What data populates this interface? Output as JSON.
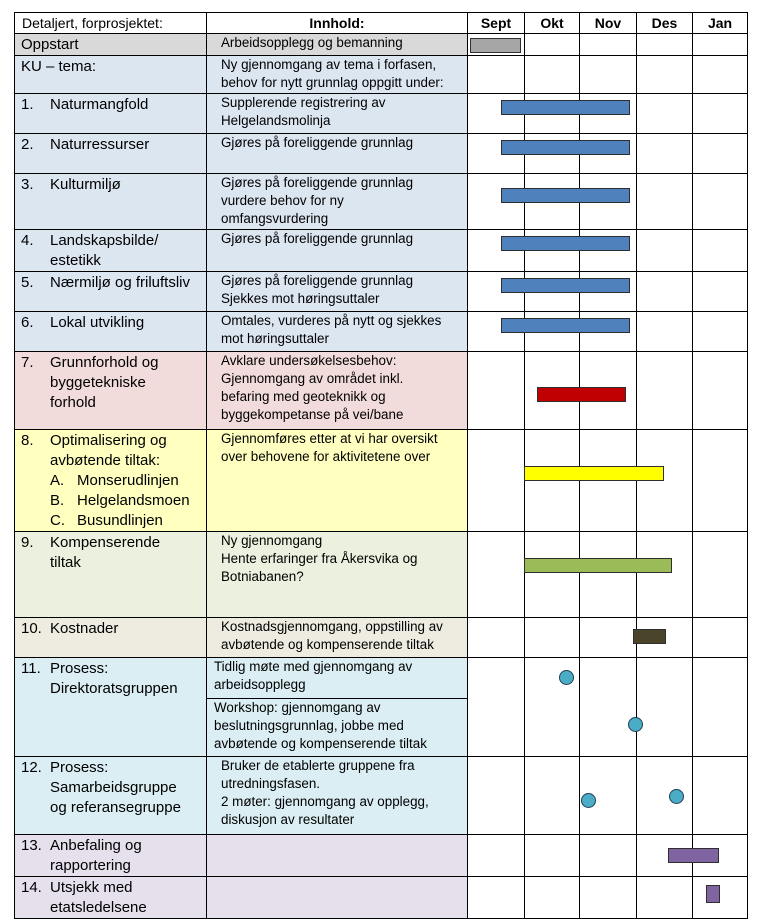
{
  "header": {
    "col1": "Detaljert, forprosjektet:",
    "col2": "Innhold:",
    "months": [
      "Sept",
      "Okt",
      "Nov",
      "Des",
      "Jan"
    ]
  },
  "colors": {
    "grey": "#d9d9d9",
    "blue": "#dce6f1",
    "red": "#f2dcdb",
    "yellow": "#ffffc0",
    "green": "#ebf1de",
    "tan": "#eeece1",
    "cyan": "#dbeef3",
    "lavender": "#e5e0ec",
    "bar_grey": "#a6a6a6",
    "bar_blue": "#4f81bd",
    "bar_red": "#c00000",
    "bar_yellow": "#ffff00",
    "bar_green": "#9bbb59",
    "bar_dark": "#4a452a",
    "bar_purple": "#8064a2",
    "milestone": "#4bacc6"
  },
  "rows": [
    {
      "num": "",
      "task": [
        "Oppstart"
      ],
      "subs": [],
      "content": [
        [
          "Arbeidsopplegg og bemanning"
        ]
      ],
      "bg": "#d9d9d9"
    },
    {
      "num": "",
      "task": [
        "KU – tema:"
      ],
      "subs": [],
      "content": [
        [
          "Ny gjennomgang av tema i forfasen,",
          "behov for nytt grunnlag oppgitt under:"
        ]
      ],
      "bg": "#dce6f1"
    },
    {
      "num": "1.",
      "task": [
        "Naturmangfold"
      ],
      "subs": [],
      "content": [
        [
          "Supplerende registrering av",
          "Helgelandsmolinja"
        ]
      ],
      "bg": "#dce6f1"
    },
    {
      "num": "2.",
      "task": [
        "Naturressurser"
      ],
      "subs": [],
      "content": [
        [
          "Gjøres på foreliggende grunnlag"
        ]
      ],
      "bg": "#dce6f1"
    },
    {
      "num": "3.",
      "task": [
        "Kulturmiljø"
      ],
      "subs": [],
      "content": [
        [
          "Gjøres på foreliggende grunnlag",
          "vurdere behov for ny",
          "omfangsvurdering"
        ]
      ],
      "bg": "#dce6f1"
    },
    {
      "num": "4.",
      "task": [
        "Landskapsbilde/",
        "estetikk"
      ],
      "subs": [],
      "content": [
        [
          "Gjøres på foreliggende grunnlag"
        ]
      ],
      "bg": "#dce6f1"
    },
    {
      "num": "5.",
      "task": [
        "Nærmiljø og friluftsliv"
      ],
      "subs": [],
      "content": [
        [
          "Gjøres på foreliggende grunnlag",
          "Sjekkes mot høringsuttaler"
        ]
      ],
      "bg": "#dce6f1"
    },
    {
      "num": "6.",
      "task": [
        "Lokal utvikling"
      ],
      "subs": [],
      "content": [
        [
          "Omtales, vurderes på nytt og sjekkes",
          "mot høringsuttaler"
        ]
      ],
      "bg": "#dce6f1"
    },
    {
      "num": "7.",
      "task": [
        "Grunnforhold og",
        "byggetekniske",
        "forhold"
      ],
      "subs": [],
      "content": [
        [
          "Avklare undersøkelsesbehov:",
          "Gjennomgang av området inkl.",
          "befaring med geoteknikk og",
          "byggekompetanse på vei/bane"
        ]
      ],
      "bg": "#f2dcdb"
    },
    {
      "num": "8.",
      "task": [
        "Optimalisering og",
        "avbøtende tiltak:"
      ],
      "subs": [
        [
          "A.",
          "Monserudlinjen"
        ],
        [
          "B.",
          "Helgelandsmoen"
        ],
        [
          "C.",
          "Busundlinjen"
        ]
      ],
      "content": [
        [
          "Gjennomføres etter at vi har oversikt",
          "over behovene for aktivitetene over"
        ]
      ],
      "bg": "#ffffc0"
    },
    {
      "num": "9.",
      "task": [
        "Kompenserende",
        "tiltak"
      ],
      "subs": [],
      "content": [
        [
          "Ny gjennomgang",
          "Hente erfaringer fra Åkersvika og",
          "Botniabanen?"
        ]
      ],
      "bg": "#ebf1de"
    },
    {
      "num": "10.",
      "task": [
        "Kostnader"
      ],
      "subs": [],
      "content": [
        [
          "Kostnadsgjennomgang, oppstilling av",
          "avbøtende og kompenserende tiltak"
        ]
      ],
      "bg": "#eeece1"
    },
    {
      "num": "11.",
      "task": [
        "Prosess:",
        "Direktoratsgruppen"
      ],
      "subs": [],
      "content": [
        [
          "Tidlig møte med gjennomgang av",
          "arbeidsopplegg"
        ],
        [
          "Workshop: gjennomgang av",
          "beslutningsgrunnlag, jobbe med",
          "avbøtende og kompenserende tiltak"
        ]
      ],
      "bg": "#dbeef3"
    },
    {
      "num": "12.",
      "task": [
        "Prosess:",
        "Samarbeidsgruppe",
        "og referansegruppe"
      ],
      "subs": [],
      "content": [
        [
          "Bruker de etablerte gruppene fra",
          "utredningsfasen.",
          "2 møter: gjennomgang av opplegg,",
          "diskusjon av resultater"
        ]
      ],
      "bg": "#dbeef3"
    },
    {
      "num": "13.",
      "task": [
        "Anbefaling og",
        "rapportering"
      ],
      "subs": [],
      "content": [
        []
      ],
      "bg": "#e5e0ec"
    },
    {
      "num": "14.",
      "task": [
        "Utsjekk med",
        "etatsledelsene"
      ],
      "subs": [],
      "content": [
        []
      ],
      "bg": "#e5e0ec"
    }
  ]
}
